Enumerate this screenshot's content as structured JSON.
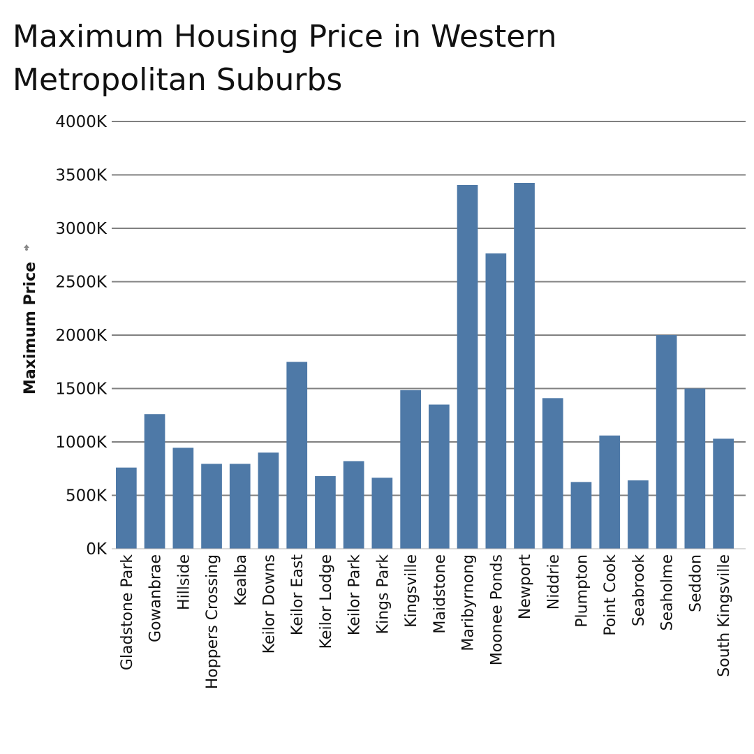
{
  "chart_data": {
    "type": "bar",
    "title": "Maximum Housing Price in Western Metropolitan Suburbs",
    "xlabel": "",
    "ylabel": "Maximum Price",
    "ylabel_icon": "sort-icon",
    "ylim": [
      0,
      4000000
    ],
    "yticks": [
      0,
      500000,
      1000000,
      1500000,
      2000000,
      2500000,
      3000000,
      3500000,
      4000000
    ],
    "ytick_labels": [
      "0K",
      "500K",
      "1000K",
      "1500K",
      "2000K",
      "2500K",
      "3000K",
      "3500K",
      "4000K"
    ],
    "grid": true,
    "bar_color": "#4e79a7",
    "grid_color": "#808080",
    "categories": [
      "Gladstone Park",
      "Gowanbrae",
      "Hillside",
      "Hoppers Crossing",
      "Kealba",
      "Keilor Downs",
      "Keilor East",
      "Keilor Lodge",
      "Keilor Park",
      "Kings Park",
      "Kingsville",
      "Maidstone",
      "Maribyrnong",
      "Moonee Ponds",
      "Newport",
      "Niddrie",
      "Plumpton",
      "Point Cook",
      "Seabrook",
      "Seaholme",
      "Seddon",
      "South Kingsville"
    ],
    "values": [
      760000,
      1260000,
      945000,
      795000,
      795000,
      900000,
      1750000,
      680000,
      820000,
      665000,
      1485000,
      1350000,
      3405000,
      2765000,
      3425000,
      1410000,
      625000,
      1060000,
      640000,
      2000000,
      1500000,
      1030000
    ]
  }
}
